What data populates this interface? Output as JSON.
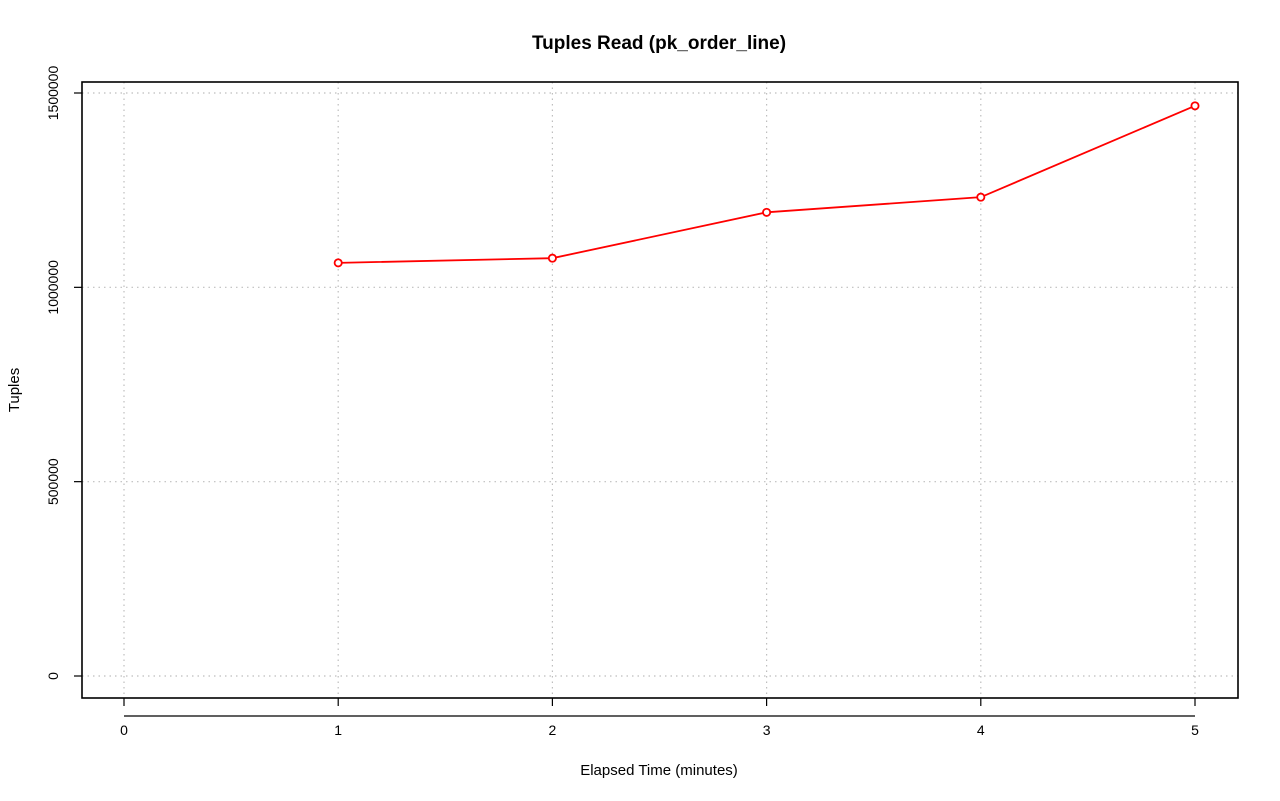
{
  "chart_data": {
    "type": "line",
    "title": "Tuples Read (pk_order_line)",
    "xlabel": "Elapsed Time (minutes)",
    "ylabel": "Tuples",
    "xlim": [
      0,
      5
    ],
    "ylim": [
      0,
      1500000
    ],
    "x_ticks": [
      0,
      1,
      2,
      3,
      4,
      5
    ],
    "y_ticks": [
      0,
      500000,
      1000000,
      1500000
    ],
    "grid": true,
    "series": [
      {
        "color": "#ff0000",
        "x": [
          1,
          2,
          3,
          4,
          5
        ],
        "y": [
          1063000,
          1075000,
          1193000,
          1232000,
          1467000
        ]
      }
    ]
  }
}
